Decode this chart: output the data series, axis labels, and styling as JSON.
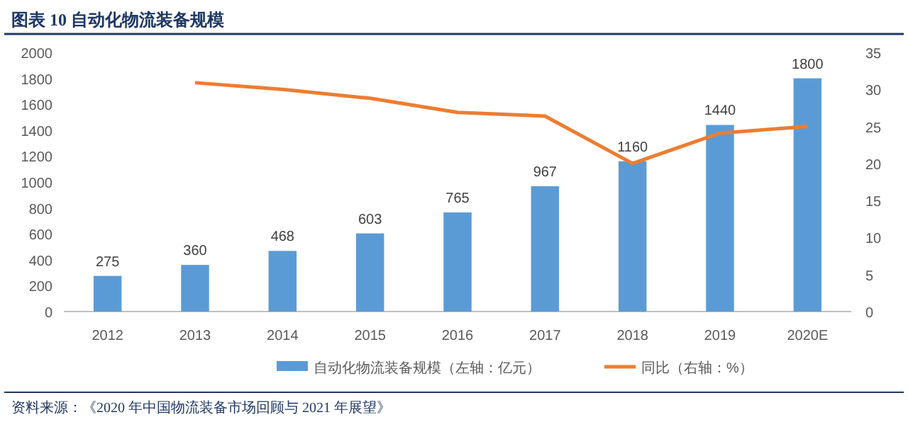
{
  "chart_data": {
    "type": "bar",
    "title": "图表 10 自动化物流装备规模",
    "categories": [
      "2012",
      "2013",
      "2014",
      "2015",
      "2016",
      "2017",
      "2018",
      "2019",
      "2020E"
    ],
    "series": [
      {
        "name": "自动化物流装备规模（左轴：亿元）",
        "color": "#5b9bd5",
        "values": [
          275,
          360,
          468,
          603,
          765,
          967,
          1160,
          1440,
          1800
        ],
        "value_labels": [
          "275",
          "360",
          "468",
          "603",
          "765",
          "967",
          "1160",
          "1440",
          "1800"
        ]
      },
      {
        "name": "同比（右轴：%）",
        "type": "line",
        "axis": "y2",
        "color": "#ed7d31",
        "values": [
          null,
          30.9,
          30.0,
          28.8,
          26.9,
          26.4,
          20.0,
          24.1,
          25.0
        ]
      }
    ],
    "ylim": [
      0,
      2000
    ],
    "yticks": [
      0,
      200,
      400,
      600,
      800,
      1000,
      1200,
      1400,
      1600,
      1800,
      2000
    ],
    "y2lim": [
      0,
      35
    ],
    "y2ticks": [
      0,
      5,
      10,
      15,
      20,
      25,
      30,
      35
    ],
    "legend": "bottom",
    "grid": false,
    "annotations": [
      "资料来源：《2020 年中国物流装备市场回顾与 2021 年展望》"
    ]
  }
}
